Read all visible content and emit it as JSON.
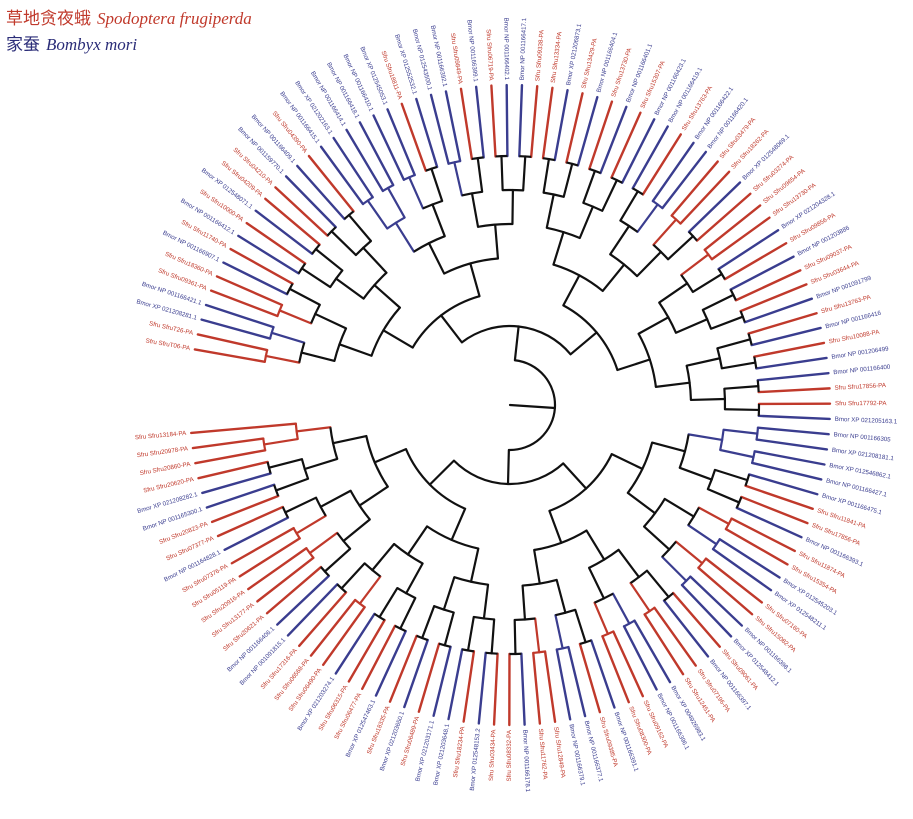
{
  "legend": {
    "species_a": {
      "chinese": "草地贪夜蛾",
      "latin": "Spodoptera frugiperda",
      "color": "#c0392b"
    },
    "species_b": {
      "chinese": "家蚕",
      "latin": "Bombyx mori",
      "color": "#2b2d78"
    }
  },
  "colors": {
    "sf_branch": "#c0392b",
    "bm_branch": "#3a3d8f",
    "backbone": "#111111"
  },
  "tree": {
    "leaves": [
      {
        "label": "Sfru SfruT06-PA",
        "sp": "sf"
      },
      {
        "label": "Sfru SfruT26-PA",
        "sp": "sf"
      },
      {
        "label": "Bmor XP 021208281.1",
        "sp": "bm"
      },
      {
        "label": "Bmor NP 001166421.1",
        "sp": "bm"
      },
      {
        "label": "Sfru Sfru09361-PA",
        "sp": "sf"
      },
      {
        "label": "Sfru Sfru18360-PA",
        "sp": "sf"
      },
      {
        "label": "Bmor NP 001166907.1",
        "sp": "bm"
      },
      {
        "label": "Sfru Sfru11740-PA",
        "sp": "sf"
      },
      {
        "label": "Bmor NP 001166412.1",
        "sp": "bm"
      },
      {
        "label": "Sfru Sfru10000-PA",
        "sp": "sf"
      },
      {
        "label": "Bmor XP 012548071.1",
        "sp": "bm"
      },
      {
        "label": "Sfru Sfru04209-PA",
        "sp": "sf"
      },
      {
        "label": "Sfru Sfru04210-PA",
        "sp": "sf"
      },
      {
        "label": "Bmor NP 001159770.1",
        "sp": "bm"
      },
      {
        "label": "Bmor NP 001166409.1",
        "sp": "bm"
      },
      {
        "label": "Sfru Sfru04390-PA",
        "sp": "sf"
      },
      {
        "label": "Bmor NP 001166415.1",
        "sp": "bm"
      },
      {
        "label": "Bmor XP 021202163.1",
        "sp": "bm"
      },
      {
        "label": "Bmor NP 001166414.1",
        "sp": "bm"
      },
      {
        "label": "Bmor NP 001166418.1",
        "sp": "bm"
      },
      {
        "label": "Bmor NP 001166410.1",
        "sp": "bm"
      },
      {
        "label": "Bmor XP 012545053.1",
        "sp": "bm"
      },
      {
        "label": "Sfru Sfru18811-PA",
        "sp": "sf"
      },
      {
        "label": "Bmor XP 012552532.1",
        "sp": "bm"
      },
      {
        "label": "Bmor NP 012543500.1",
        "sp": "bm"
      },
      {
        "label": "Bmor NP 001166392.1",
        "sp": "bm"
      },
      {
        "label": "Sfru Sfru09849-PA",
        "sp": "sf"
      },
      {
        "label": "Bmor NP 001166399.1",
        "sp": "bm"
      },
      {
        "label": "Sfru Sfru06719-PA",
        "sp": "sf"
      },
      {
        "label": "Bmor NP 001166402.1",
        "sp": "bm"
      },
      {
        "label": "Bmor NP 001166417.1",
        "sp": "bm"
      },
      {
        "label": "Sfru Sfru09338-PA",
        "sp": "sf"
      },
      {
        "label": "Sfru Sfru13334-PA",
        "sp": "sf"
      },
      {
        "label": "Bmor XP 021206873.1",
        "sp": "bm"
      },
      {
        "label": "Sfru Sfru13429-PA",
        "sp": "sf"
      },
      {
        "label": "Bmor NP 001166404.1",
        "sp": "bm"
      },
      {
        "label": "Sfru Sfru13730-PA",
        "sp": "sf"
      },
      {
        "label": "Bmor NP 001166401.1",
        "sp": "bm"
      },
      {
        "label": "Sfru Sfru15307-PA",
        "sp": "sf"
      },
      {
        "label": "Bmor NP 001166423.1",
        "sp": "bm"
      },
      {
        "label": "Bmor NP 001166419.1",
        "sp": "bm"
      },
      {
        "label": "Sfru Sfru13763-PA",
        "sp": "sf"
      },
      {
        "label": "Bmor NP 001166422.1",
        "sp": "bm"
      },
      {
        "label": "Bmor NP 001166420.1",
        "sp": "bm"
      },
      {
        "label": "Sfru Sfru03479-PA",
        "sp": "sf"
      },
      {
        "label": "Sfru Sfru18262-PA",
        "sp": "sf"
      },
      {
        "label": "Bmor XP 012548069.1",
        "sp": "bm"
      },
      {
        "label": "Sfru Sfru03274-PA",
        "sp": "sf"
      },
      {
        "label": "Sfru Sfru09654-PA",
        "sp": "sf"
      },
      {
        "label": "Sfru Sfru13730-PA",
        "sp": "sf"
      },
      {
        "label": "Bmor XP 021204328.1",
        "sp": "bm"
      },
      {
        "label": "Sfru Sfru09856-PA",
        "sp": "sf"
      },
      {
        "label": "Bmor NP 001203886",
        "sp": "bm"
      },
      {
        "label": "Sfru Sfru09037-PA",
        "sp": "sf"
      },
      {
        "label": "Sfru Sfru03644-PA",
        "sp": "sf"
      },
      {
        "label": "Bmor NP 001091799",
        "sp": "bm"
      },
      {
        "label": "Sfru Sfru13763-PA",
        "sp": "sf"
      },
      {
        "label": "Bmor NP 001166416",
        "sp": "bm"
      },
      {
        "label": "Sfru Sfru10088-PA",
        "sp": "sf"
      },
      {
        "label": "Bmor NP 001206499",
        "sp": "bm"
      },
      {
        "label": "Bmor NP 001166400",
        "sp": "bm"
      },
      {
        "label": "Sfru Sfru17856-PA",
        "sp": "sf"
      },
      {
        "label": "Sfru Sfru17792-PA",
        "sp": "sf"
      },
      {
        "label": "Bmor XP 021205163.1",
        "sp": "bm"
      },
      {
        "label": "Bmor NP 001166305",
        "sp": "bm"
      },
      {
        "label": "Bmor XP 021208181.1",
        "sp": "bm"
      },
      {
        "label": "Bmor XP 012546862.1",
        "sp": "bm"
      },
      {
        "label": "Bmor NP 001166427.1",
        "sp": "bm"
      },
      {
        "label": "Bmor XP 001166475.1",
        "sp": "bm"
      },
      {
        "label": "Sfru Sfru11841-PA",
        "sp": "sf"
      },
      {
        "label": "Sfru Sfru17856-PA",
        "sp": "sf"
      },
      {
        "label": "Bmor NP 001166393.1",
        "sp": "bm"
      },
      {
        "label": "Sfru Sfru11874-PA",
        "sp": "sf"
      },
      {
        "label": "Sfru Sfru15354-PA",
        "sp": "sf"
      },
      {
        "label": "Bmor XP 012545203.1",
        "sp": "bm"
      },
      {
        "label": "Bmor XP 012548211.1",
        "sp": "bm"
      },
      {
        "label": "Sfru Sfru07160-PA",
        "sp": "sf"
      },
      {
        "label": "Sfru Sfru15082-PA",
        "sp": "sf"
      },
      {
        "label": "Bmor NP 001166398.1",
        "sp": "bm"
      },
      {
        "label": "Bmor XP 012548412.1",
        "sp": "bm"
      },
      {
        "label": "Sfru Sfru09061-PA",
        "sp": "sf"
      },
      {
        "label": "Bmor NP 001166397.1",
        "sp": "bm"
      },
      {
        "label": "Sfru Sfru07196-PA",
        "sp": "sf"
      },
      {
        "label": "Sfru Sfru12451-PA",
        "sp": "sf"
      },
      {
        "label": "Bmor XP 004926983.1",
        "sp": "bm"
      },
      {
        "label": "Bmor NP 001166396.1",
        "sp": "bm"
      },
      {
        "label": "Sfru Sfru09162-PA",
        "sp": "sf"
      },
      {
        "label": "Sfru Sfru08300-PA",
        "sp": "sf"
      },
      {
        "label": "Bmor NP 001166391.1",
        "sp": "bm"
      },
      {
        "label": "Sfru Sfru09385-PA",
        "sp": "sf"
      },
      {
        "label": "Bmor NP 001166377.1",
        "sp": "bm"
      },
      {
        "label": "Bmor NP 001166379.1",
        "sp": "bm"
      },
      {
        "label": "Sfru Sfru12849-PA",
        "sp": "sf"
      },
      {
        "label": "Sfru Sfru11762-PA",
        "sp": "sf"
      },
      {
        "label": "Bmor NP 001166178.1",
        "sp": "bm"
      },
      {
        "label": "Sfru Sfru08332-PA",
        "sp": "sf"
      },
      {
        "label": "Sfru Sfru03434-PA",
        "sp": "sf"
      },
      {
        "label": "Bmor XP 012548153.2",
        "sp": "bm"
      },
      {
        "label": "Sfru Sfru18234-PA",
        "sp": "sf"
      },
      {
        "label": "Bmor XP 021203648.1",
        "sp": "bm"
      },
      {
        "label": "Bmor XP 021203171.1",
        "sp": "bm"
      },
      {
        "label": "Sfru Sfru06489-PA",
        "sp": "sf"
      },
      {
        "label": "Bmor XP 021203650.1",
        "sp": "bm"
      },
      {
        "label": "Sfru Sfru18335-PA",
        "sp": "sf"
      },
      {
        "label": "Bmor XP 012547463.1",
        "sp": "bm"
      },
      {
        "label": "Sfru Sfru06477-PA",
        "sp": "sf"
      },
      {
        "label": "Sfru Sfru06315-PA",
        "sp": "sf"
      },
      {
        "label": "Bmor XP 021203274.1",
        "sp": "bm"
      },
      {
        "label": "Sfru Sfru06490-PA",
        "sp": "sf"
      },
      {
        "label": "Sfru Sfru06568-PA",
        "sp": "sf"
      },
      {
        "label": "Sfru Sfru17316-PA",
        "sp": "sf"
      },
      {
        "label": "Bmor NP 001091815.1",
        "sp": "bm"
      },
      {
        "label": "Bmor NP 001166406.1",
        "sp": "bm"
      },
      {
        "label": "Sfru Sfru20621-PA",
        "sp": "sf"
      },
      {
        "label": "Sfru Sfru13177-PA",
        "sp": "sf"
      },
      {
        "label": "Sfru Sfru20916-PA",
        "sp": "sf"
      },
      {
        "label": "Sfru Sfru05119-PA",
        "sp": "sf"
      },
      {
        "label": "Sfru Sfru07376-PA",
        "sp": "sf"
      },
      {
        "label": "Bmor NP 001164828.1",
        "sp": "bm"
      },
      {
        "label": "Sfru Sfru07377-PA",
        "sp": "sf"
      },
      {
        "label": "Sfru Sfru20823-PA",
        "sp": "sf"
      },
      {
        "label": "Bmor NP 001165300.1",
        "sp": "bm"
      },
      {
        "label": "Bmor XP 021208282.1",
        "sp": "bm"
      },
      {
        "label": "Sfru Sfru20620-PA",
        "sp": "sf"
      },
      {
        "label": "Sfru Sfru20860-PA",
        "sp": "sf"
      },
      {
        "label": "Sfru Sfru20978-PA",
        "sp": "sf"
      },
      {
        "label": "Sfru Sfru13184-PA",
        "sp": "sf"
      }
    ]
  }
}
